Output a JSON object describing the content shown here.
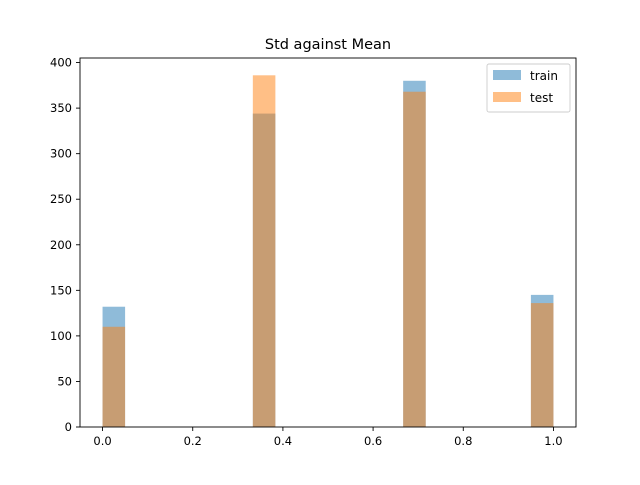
{
  "chart_data": {
    "type": "bar",
    "title": "Std against Mean",
    "xlabel": "",
    "ylabel": "",
    "xlim": [
      -0.05,
      1.05
    ],
    "ylim": [
      0,
      405
    ],
    "bin_width": 0.05,
    "x_ticks": [
      0.0,
      0.2,
      0.4,
      0.6,
      0.8,
      1.0
    ],
    "x_tick_labels": [
      "0.0",
      "0.2",
      "0.4",
      "0.6",
      "0.8",
      "1.0"
    ],
    "y_ticks": [
      0,
      50,
      100,
      150,
      200,
      250,
      300,
      350,
      400
    ],
    "y_tick_labels": [
      "0",
      "50",
      "100",
      "150",
      "200",
      "250",
      "300",
      "350",
      "400"
    ],
    "grid": false,
    "legend_position": "top-right",
    "series": [
      {
        "name": "train",
        "color": "#1f77b4",
        "opacity": 0.5,
        "bins": [
          {
            "x": 0.0,
            "value": 132
          },
          {
            "x": 0.3333,
            "value": 344
          },
          {
            "x": 0.6667,
            "value": 380
          },
          {
            "x": 0.95,
            "value": 145
          }
        ]
      },
      {
        "name": "test",
        "color": "#ff7f0e",
        "opacity": 0.5,
        "bins": [
          {
            "x": 0.0,
            "value": 110
          },
          {
            "x": 0.3333,
            "value": 386
          },
          {
            "x": 0.6667,
            "value": 368
          },
          {
            "x": 0.95,
            "value": 136
          }
        ]
      }
    ]
  }
}
